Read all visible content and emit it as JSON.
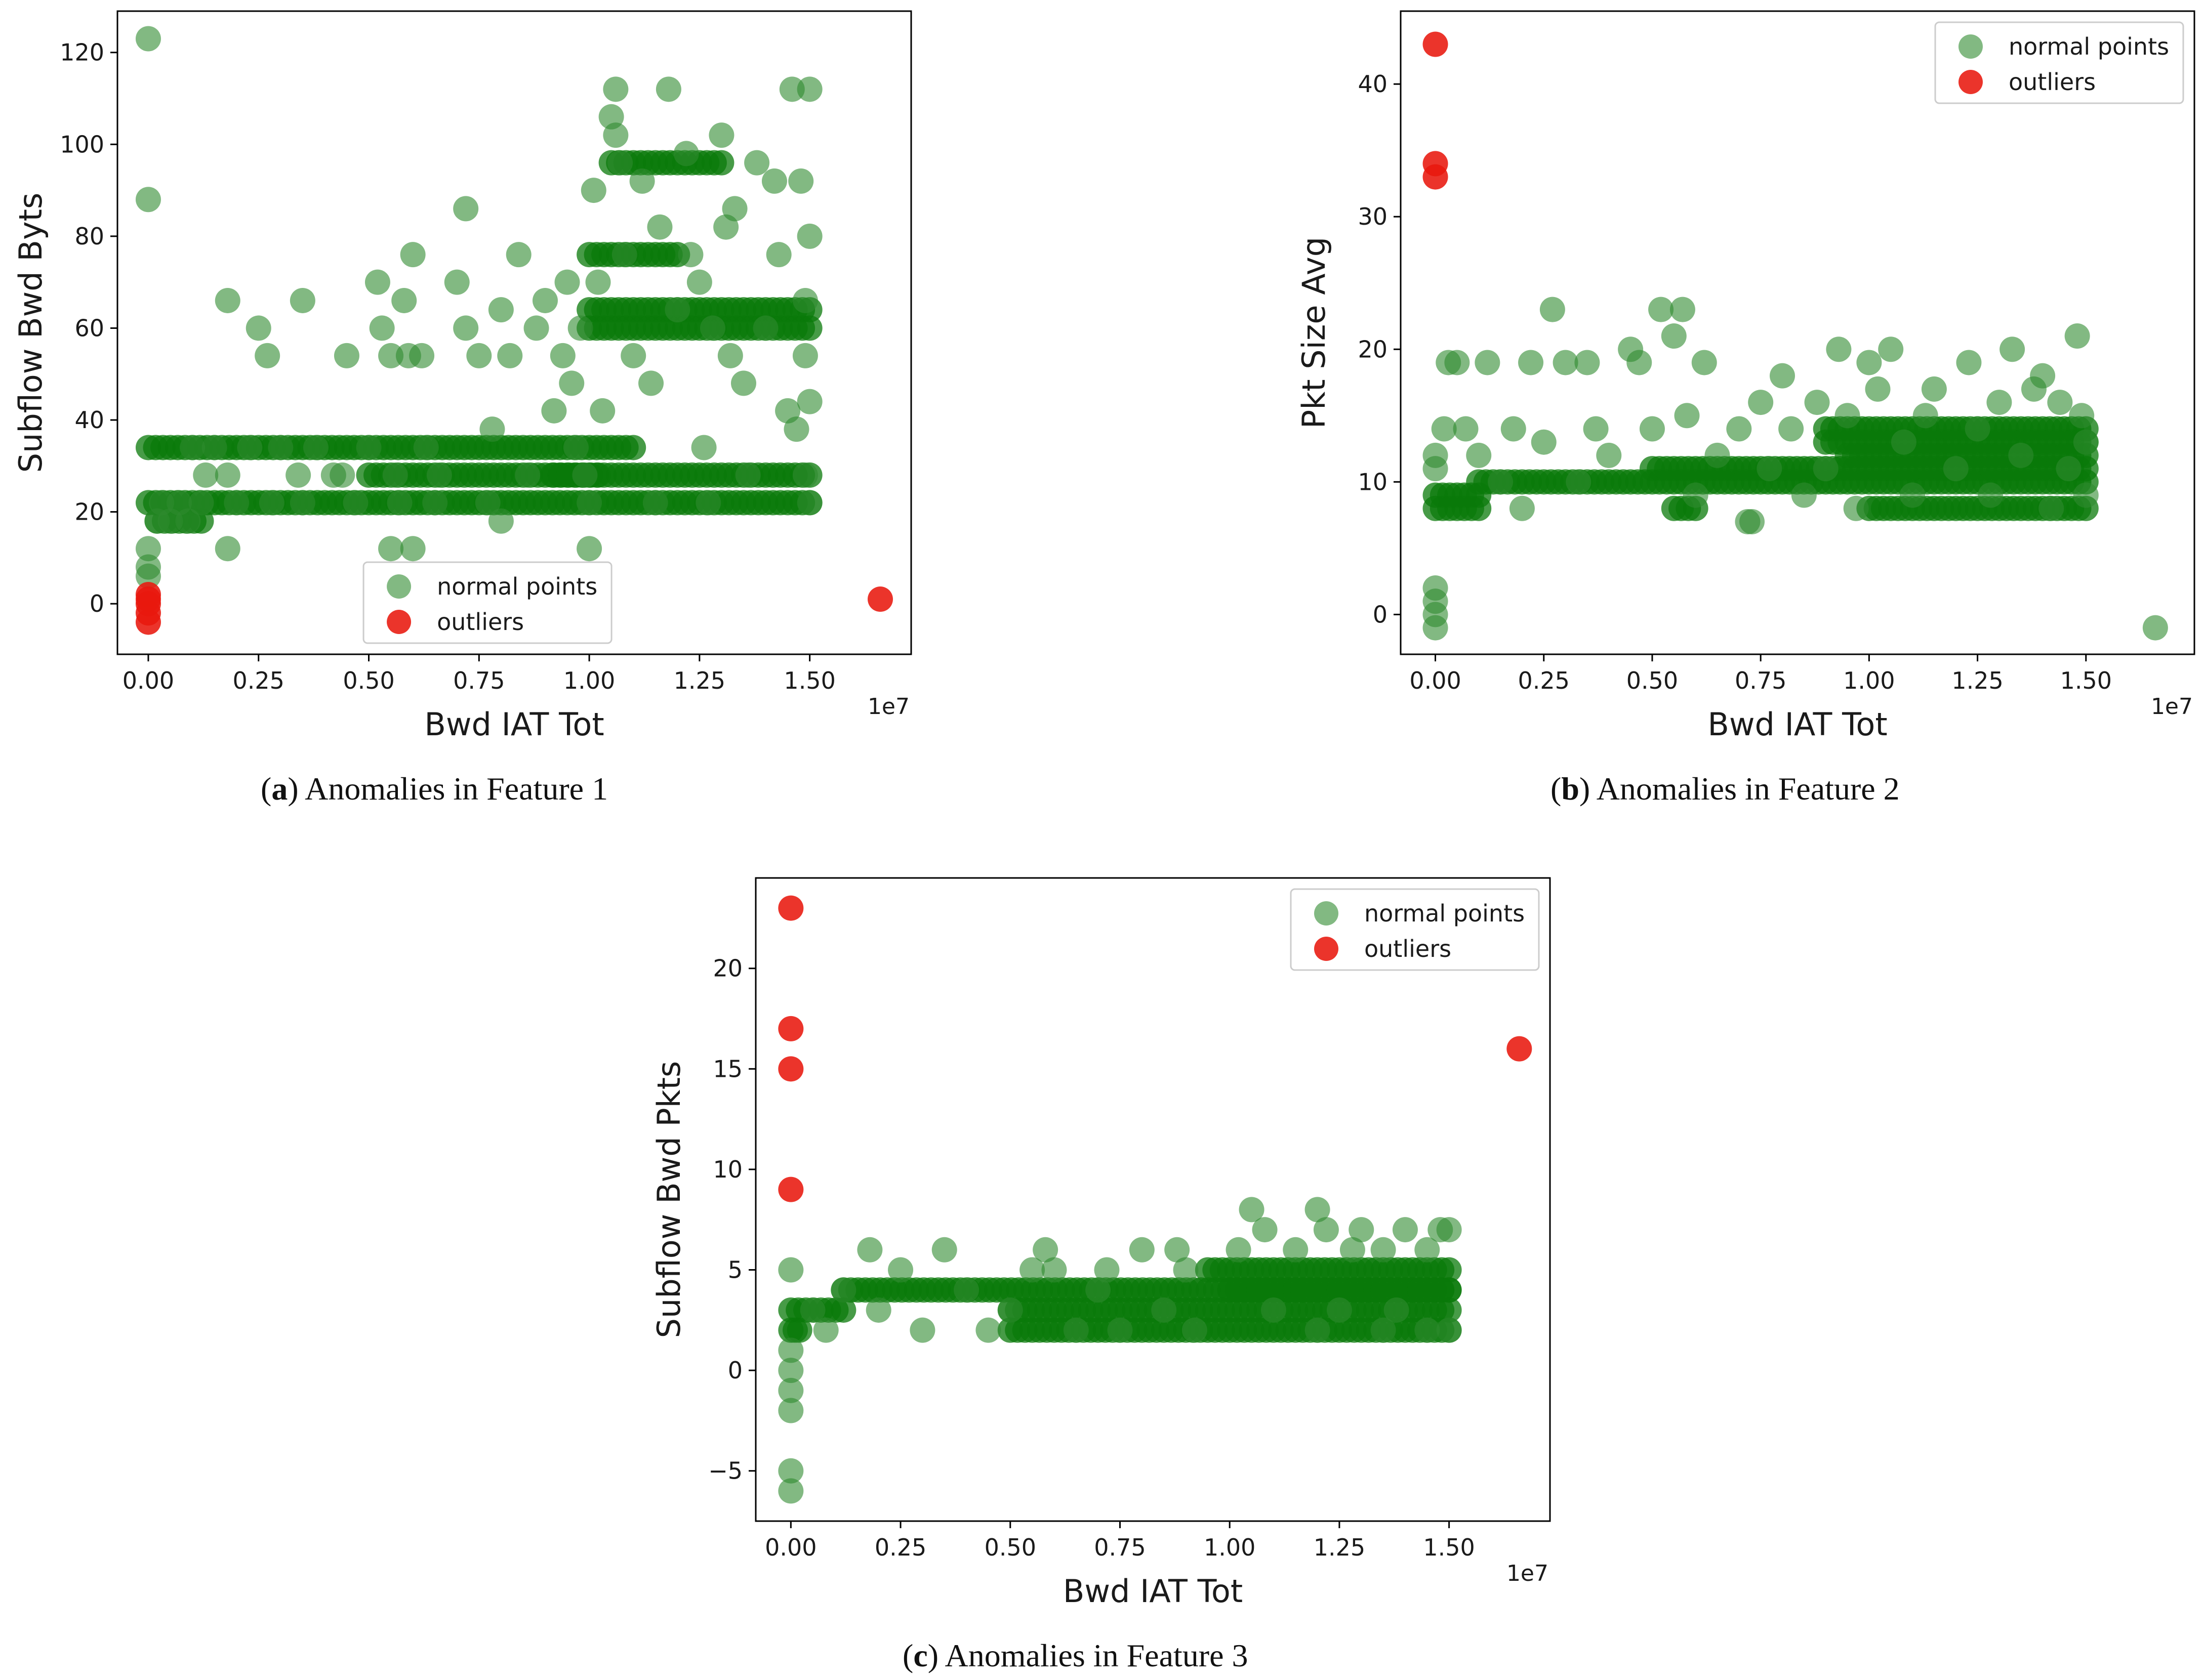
{
  "figure": {
    "captions": [
      {
        "label": "a",
        "text": "Anomalies in Feature 1"
      },
      {
        "label": "b",
        "text": "Anomalies in Feature 2"
      },
      {
        "label": "c",
        "text": "Anomalies in Feature 3"
      }
    ]
  },
  "colors": {
    "normal": "#2e8b2e",
    "normal_dense": "#0a7a0a",
    "outlier": "#e8180e"
  },
  "chart_data": [
    {
      "id": "a",
      "type": "scatter",
      "title": "",
      "xlabel": "Bwd IAT Tot",
      "ylabel": "Subflow Bwd Byts",
      "x_multiplier_label": "1e7",
      "xlim": [
        -0.07,
        1.73
      ],
      "ylim": [
        -11,
        129
      ],
      "xticks": [
        0.0,
        0.25,
        0.5,
        0.75,
        1.0,
        1.25,
        1.5
      ],
      "xtick_labels": [
        "0.00",
        "0.25",
        "0.50",
        "0.75",
        "1.00",
        "1.25",
        "1.50"
      ],
      "yticks": [
        0,
        20,
        40,
        60,
        80,
        100,
        120
      ],
      "ytick_labels": [
        "0",
        "20",
        "40",
        "60",
        "80",
        "100",
        "120"
      ],
      "legend": {
        "position": "lower-center",
        "entries": [
          "normal points",
          "outliers"
        ]
      },
      "outliers": [
        [
          0.0,
          2
        ],
        [
          0.0,
          0
        ],
        [
          0.0,
          -2
        ],
        [
          0.0,
          -4
        ],
        [
          0.0,
          1
        ],
        [
          1.66,
          1
        ]
      ],
      "normal": [
        [
          0.0,
          123
        ],
        [
          0.0,
          88
        ],
        [
          0.0,
          12
        ],
        [
          0.0,
          8
        ],
        [
          0.0,
          6
        ],
        [
          0.02,
          18
        ],
        [
          0.03,
          22
        ],
        [
          0.05,
          18
        ],
        [
          0.07,
          22
        ],
        [
          0.09,
          18
        ],
        [
          0.1,
          34
        ],
        [
          0.12,
          22
        ],
        [
          0.13,
          28
        ],
        [
          0.15,
          34
        ],
        [
          0.18,
          66
        ],
        [
          0.18,
          12
        ],
        [
          0.18,
          28
        ],
        [
          0.2,
          22
        ],
        [
          0.23,
          34
        ],
        [
          0.25,
          60
        ],
        [
          0.27,
          54
        ],
        [
          0.28,
          22
        ],
        [
          0.3,
          34
        ],
        [
          0.35,
          66
        ],
        [
          0.35,
          22
        ],
        [
          0.38,
          34
        ],
        [
          0.42,
          28
        ],
        [
          0.45,
          54
        ],
        [
          0.47,
          22
        ],
        [
          0.5,
          34
        ],
        [
          0.52,
          70
        ],
        [
          0.53,
          60
        ],
        [
          0.55,
          54
        ],
        [
          0.56,
          28
        ],
        [
          0.57,
          22
        ],
        [
          0.58,
          66
        ],
        [
          0.59,
          54
        ],
        [
          0.6,
          76
        ],
        [
          0.6,
          12
        ],
        [
          0.62,
          54
        ],
        [
          0.63,
          34
        ],
        [
          0.65,
          22
        ],
        [
          0.7,
          70
        ],
        [
          0.72,
          86
        ],
        [
          0.72,
          60
        ],
        [
          0.75,
          54
        ],
        [
          0.77,
          22
        ],
        [
          0.78,
          38
        ],
        [
          0.8,
          64
        ],
        [
          0.8,
          18
        ],
        [
          0.82,
          54
        ],
        [
          0.84,
          76
        ],
        [
          0.86,
          28
        ],
        [
          0.88,
          60
        ],
        [
          0.9,
          66
        ],
        [
          0.92,
          42
        ],
        [
          0.94,
          54
        ],
        [
          0.95,
          70
        ],
        [
          0.96,
          48
        ],
        [
          0.97,
          34
        ],
        [
          0.98,
          60
        ],
        [
          0.99,
          28
        ],
        [
          1.0,
          12
        ],
        [
          1.01,
          90
        ],
        [
          1.02,
          70
        ],
        [
          1.03,
          42
        ],
        [
          1.05,
          106
        ],
        [
          1.06,
          112
        ],
        [
          1.06,
          102
        ],
        [
          1.07,
          96
        ],
        [
          1.08,
          76
        ],
        [
          1.1,
          54
        ],
        [
          1.12,
          92
        ],
        [
          1.14,
          48
        ],
        [
          1.16,
          82
        ],
        [
          1.18,
          112
        ],
        [
          1.2,
          64
        ],
        [
          1.22,
          98
        ],
        [
          1.23,
          76
        ],
        [
          1.25,
          70
        ],
        [
          1.26,
          34
        ],
        [
          1.28,
          60
        ],
        [
          1.3,
          102
        ],
        [
          1.31,
          82
        ],
        [
          1.32,
          54
        ],
        [
          1.33,
          86
        ],
        [
          1.35,
          48
        ],
        [
          1.36,
          28
        ],
        [
          1.38,
          96
        ],
        [
          1.4,
          60
        ],
        [
          1.42,
          92
        ],
        [
          1.43,
          76
        ],
        [
          1.45,
          42
        ],
        [
          1.46,
          112
        ],
        [
          1.47,
          38
        ],
        [
          1.48,
          92
        ],
        [
          1.49,
          54
        ],
        [
          1.5,
          112
        ],
        [
          1.5,
          80
        ],
        [
          1.5,
          44
        ],
        [
          1.5,
          22
        ],
        [
          1.49,
          66
        ],
        [
          1.49,
          28
        ],
        [
          0.34,
          28
        ],
        [
          0.44,
          28
        ],
        [
          0.66,
          28
        ],
        [
          1.15,
          22
        ],
        [
          1.27,
          22
        ],
        [
          0.55,
          12
        ],
        [
          1.0,
          22
        ]
      ],
      "bands": [
        {
          "x": [
            0.0,
            1.1
          ],
          "y": 34
        },
        {
          "x": [
            0.0,
            1.5
          ],
          "y": 22
        },
        {
          "x": [
            0.5,
            1.5
          ],
          "y": 28
        },
        {
          "x": [
            1.0,
            1.5
          ],
          "y": 64
        },
        {
          "x": [
            1.0,
            1.5
          ],
          "y": 60
        },
        {
          "x": [
            1.0,
            1.2
          ],
          "y": 76
        },
        {
          "x": [
            1.05,
            1.3
          ],
          "y": 96
        },
        {
          "x": [
            0.02,
            0.12
          ],
          "y": 18
        },
        {
          "x": [
            0.92,
            1.02
          ],
          "y": 28
        }
      ]
    },
    {
      "id": "b",
      "type": "scatter",
      "title": "",
      "xlabel": "Bwd IAT Tot",
      "ylabel": "Pkt Size Avg",
      "x_multiplier_label": "1e7",
      "xlim": [
        -0.08,
        1.75
      ],
      "ylim": [
        -3,
        45.5
      ],
      "xticks": [
        0.0,
        0.25,
        0.5,
        0.75,
        1.0,
        1.25,
        1.5
      ],
      "xtick_labels": [
        "0.00",
        "0.25",
        "0.50",
        "0.75",
        "1.00",
        "1.25",
        "1.50"
      ],
      "yticks": [
        0,
        10,
        20,
        30,
        40
      ],
      "ytick_labels": [
        "0",
        "10",
        "20",
        "30",
        "40"
      ],
      "legend": {
        "position": "top-right",
        "entries": [
          "normal points",
          "outliers"
        ]
      },
      "outliers": [
        [
          0.0,
          43
        ],
        [
          0.0,
          34
        ],
        [
          0.0,
          33
        ]
      ],
      "normal": [
        [
          0.0,
          2
        ],
        [
          0.0,
          1
        ],
        [
          0.0,
          0
        ],
        [
          0.0,
          -1
        ],
        [
          0.0,
          11
        ],
        [
          0.0,
          12
        ],
        [
          0.02,
          14
        ],
        [
          0.03,
          19
        ],
        [
          0.05,
          19
        ],
        [
          0.07,
          14
        ],
        [
          0.1,
          12
        ],
        [
          0.12,
          19
        ],
        [
          0.15,
          10
        ],
        [
          0.18,
          14
        ],
        [
          0.2,
          8
        ],
        [
          0.22,
          19
        ],
        [
          0.25,
          13
        ],
        [
          0.27,
          23
        ],
        [
          0.3,
          19
        ],
        [
          0.33,
          10
        ],
        [
          0.35,
          19
        ],
        [
          0.37,
          14
        ],
        [
          0.4,
          12
        ],
        [
          0.45,
          20
        ],
        [
          0.47,
          19
        ],
        [
          0.5,
          14
        ],
        [
          0.52,
          23
        ],
        [
          0.55,
          21
        ],
        [
          0.57,
          23
        ],
        [
          0.58,
          15
        ],
        [
          0.6,
          9
        ],
        [
          0.62,
          19
        ],
        [
          0.65,
          12
        ],
        [
          0.7,
          14
        ],
        [
          0.72,
          7
        ],
        [
          0.75,
          16
        ],
        [
          0.77,
          11
        ],
        [
          0.8,
          18
        ],
        [
          0.82,
          14
        ],
        [
          0.85,
          9
        ],
        [
          0.88,
          16
        ],
        [
          0.9,
          11
        ],
        [
          0.93,
          20
        ],
        [
          0.95,
          15
        ],
        [
          0.97,
          8
        ],
        [
          1.0,
          19
        ],
        [
          1.02,
          17
        ],
        [
          1.05,
          20
        ],
        [
          1.08,
          13
        ],
        [
          1.1,
          9
        ],
        [
          1.13,
          15
        ],
        [
          1.15,
          17
        ],
        [
          1.2,
          11
        ],
        [
          1.23,
          19
        ],
        [
          1.25,
          14
        ],
        [
          1.28,
          9
        ],
        [
          1.3,
          16
        ],
        [
          1.33,
          20
        ],
        [
          1.35,
          12
        ],
        [
          1.38,
          17
        ],
        [
          1.4,
          18
        ],
        [
          1.42,
          8
        ],
        [
          1.44,
          16
        ],
        [
          1.46,
          11
        ],
        [
          1.48,
          21
        ],
        [
          1.5,
          13
        ],
        [
          1.5,
          9
        ],
        [
          1.49,
          15
        ],
        [
          1.66,
          -1
        ],
        [
          0.73,
          7
        ]
      ],
      "bands": [
        {
          "x": [
            0.0,
            0.1
          ],
          "y": 8
        },
        {
          "x": [
            0.0,
            0.1
          ],
          "y": 9
        },
        {
          "x": [
            0.1,
            1.5
          ],
          "y": 10
        },
        {
          "x": [
            0.5,
            1.5
          ],
          "y": 11
        },
        {
          "x": [
            0.9,
            1.5
          ],
          "y": 14
        },
        {
          "x": [
            0.9,
            1.5
          ],
          "y": 13
        },
        {
          "x": [
            0.95,
            1.5
          ],
          "y": 12
        },
        {
          "x": [
            0.55,
            0.6
          ],
          "y": 8
        },
        {
          "x": [
            1.0,
            1.5
          ],
          "y": 8
        }
      ]
    },
    {
      "id": "c",
      "type": "scatter",
      "title": "",
      "xlabel": "Bwd IAT Tot",
      "ylabel": "Subflow Bwd Pkts",
      "x_multiplier_label": "1e7",
      "xlim": [
        -0.08,
        1.73
      ],
      "ylim": [
        -7.5,
        24.5
      ],
      "xticks": [
        0.0,
        0.25,
        0.5,
        0.75,
        1.0,
        1.25,
        1.5
      ],
      "xtick_labels": [
        "0.00",
        "0.25",
        "0.50",
        "0.75",
        "1.00",
        "1.25",
        "1.50"
      ],
      "yticks": [
        -5,
        0,
        5,
        10,
        15,
        20
      ],
      "ytick_labels": [
        "−5",
        "0",
        "5",
        "10",
        "15",
        "20"
      ],
      "legend": {
        "position": "top-right",
        "entries": [
          "normal points",
          "outliers"
        ]
      },
      "outliers": [
        [
          0.0,
          23
        ],
        [
          0.0,
          17
        ],
        [
          0.0,
          15
        ],
        [
          0.0,
          9
        ],
        [
          1.66,
          16
        ]
      ],
      "normal": [
        [
          0.0,
          5
        ],
        [
          0.0,
          1
        ],
        [
          0.0,
          0
        ],
        [
          0.0,
          -1
        ],
        [
          0.0,
          -2
        ],
        [
          0.0,
          -5
        ],
        [
          0.0,
          -6
        ],
        [
          0.05,
          3
        ],
        [
          0.08,
          2
        ],
        [
          0.12,
          4
        ],
        [
          0.18,
          6
        ],
        [
          0.2,
          3
        ],
        [
          0.25,
          5
        ],
        [
          0.3,
          2
        ],
        [
          0.35,
          6
        ],
        [
          0.4,
          4
        ],
        [
          0.45,
          2
        ],
        [
          0.5,
          3
        ],
        [
          0.55,
          5
        ],
        [
          0.58,
          6
        ],
        [
          0.6,
          5
        ],
        [
          0.65,
          2
        ],
        [
          0.7,
          4
        ],
        [
          0.72,
          5
        ],
        [
          0.75,
          2
        ],
        [
          0.8,
          6
        ],
        [
          0.85,
          3
        ],
        [
          0.88,
          6
        ],
        [
          0.9,
          5
        ],
        [
          0.92,
          2
        ],
        [
          1.02,
          6
        ],
        [
          1.05,
          8
        ],
        [
          1.08,
          7
        ],
        [
          1.1,
          3
        ],
        [
          1.15,
          6
        ],
        [
          1.2,
          8
        ],
        [
          1.22,
          7
        ],
        [
          1.25,
          3
        ],
        [
          1.28,
          6
        ],
        [
          1.3,
          7
        ],
        [
          1.35,
          6
        ],
        [
          1.38,
          3
        ],
        [
          1.4,
          7
        ],
        [
          1.45,
          6
        ],
        [
          1.48,
          7
        ],
        [
          1.5,
          7
        ],
        [
          1.5,
          2
        ],
        [
          1.45,
          2
        ],
        [
          1.35,
          2
        ],
        [
          1.2,
          2
        ]
      ],
      "bands": [
        {
          "x": [
            0.0,
            0.12
          ],
          "y": 3
        },
        {
          "x": [
            0.0,
            0.02
          ],
          "y": 2
        },
        {
          "x": [
            0.12,
            1.5
          ],
          "y": 4
        },
        {
          "x": [
            0.5,
            1.5
          ],
          "y": 3
        },
        {
          "x": [
            0.5,
            1.5
          ],
          "y": 2
        },
        {
          "x": [
            0.95,
            1.5
          ],
          "y": 5
        },
        {
          "x": [
            1.0,
            1.5
          ],
          "y": 4
        }
      ]
    }
  ]
}
